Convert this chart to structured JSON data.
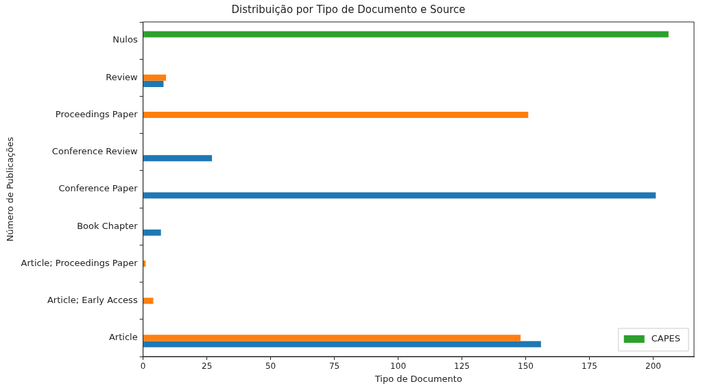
{
  "chart_data": {
    "type": "bar",
    "orientation": "horizontal",
    "title": "Distribuição por Tipo de Documento e Source",
    "xlabel": "Tipo de Documento",
    "ylabel": "Número de Publicações",
    "categories": [
      "Nulos",
      "Review",
      "Proceedings Paper",
      "Conference Review",
      "Conference Paper",
      "Book Chapter",
      "Article; Proceedings Paper",
      "Article; Early Access",
      "Article"
    ],
    "series": [
      {
        "color": "#1f77b4",
        "values": [
          null,
          8,
          null,
          27,
          201,
          7,
          null,
          null,
          156
        ]
      },
      {
        "color": "#ff7f0e",
        "values": [
          null,
          9,
          151,
          null,
          null,
          null,
          1,
          4,
          148
        ]
      },
      {
        "name": "CAPES",
        "color": "#2ca02c",
        "values": [
          206,
          null,
          null,
          null,
          null,
          null,
          null,
          null,
          null
        ]
      }
    ],
    "xlim": [
      0,
      216
    ],
    "xticks": [
      0,
      25,
      50,
      75,
      100,
      125,
      150,
      175,
      200
    ],
    "grid": false,
    "legend": "bottom right"
  }
}
